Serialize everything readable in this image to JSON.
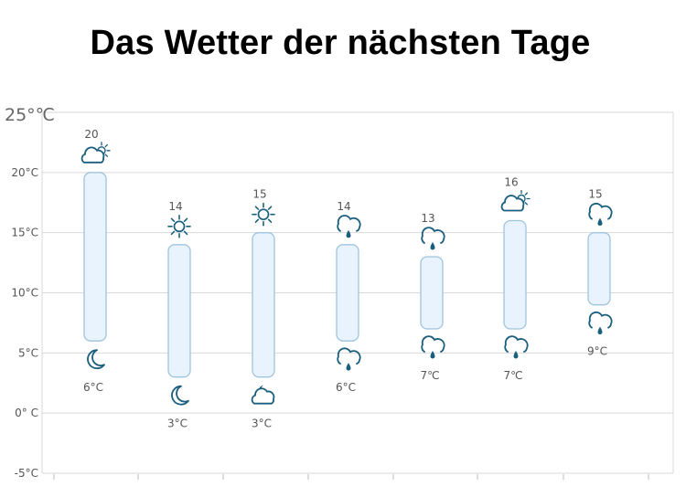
{
  "title": "Das Wetter der nächsten Tage",
  "chart_data": {
    "type": "bar",
    "subtype": "range-bar",
    "title": "Das Wetter der nächsten Tage",
    "ylim": [
      -5,
      25
    ],
    "y_ticks": [
      {
        "value": -5,
        "label": "-5°C"
      },
      {
        "value": 0,
        "label": "0° C"
      },
      {
        "value": 5,
        "label": "5°C"
      },
      {
        "value": 10,
        "label": "10°C"
      },
      {
        "value": 15,
        "label": "15°C"
      },
      {
        "value": 20,
        "label": "20°C"
      },
      {
        "value": 25,
        "label": "25°℃"
      }
    ],
    "grid": true,
    "days": [
      {
        "high": 20,
        "low": 6,
        "high_label": "20",
        "low_label": "6°C",
        "day_icon": "sun-cloud-icon",
        "night_icon": "moon-icon"
      },
      {
        "high": 14,
        "low": 3,
        "high_label": "14",
        "low_label": "3°C",
        "day_icon": "sun-icon",
        "night_icon": "moon-icon"
      },
      {
        "high": 15,
        "low": 3,
        "high_label": "15",
        "low_label": "3°C",
        "day_icon": "sun-icon",
        "night_icon": "moon-cloud-icon"
      },
      {
        "high": 14,
        "low": 6,
        "high_label": "14",
        "low_label": "6°C",
        "day_icon": "rain-icon",
        "night_icon": "rain-icon"
      },
      {
        "high": 13,
        "low": 7,
        "high_label": "13",
        "low_label": "7℃",
        "day_icon": "rain-icon",
        "night_icon": "rain-icon"
      },
      {
        "high": 16,
        "low": 7,
        "high_label": "16",
        "low_label": "7℃",
        "day_icon": "sun-cloud-icon",
        "night_icon": "rain-icon"
      },
      {
        "high": 15,
        "low": 9,
        "high_label": "15",
        "low_label": "9°C",
        "day_icon": "rain-icon",
        "night_icon": "rain-icon"
      }
    ],
    "colors": {
      "bar_fill": "#e9f3fd",
      "bar_stroke": "#9fc5de",
      "icon": "#1b5f7e",
      "grid": "#d9d9d9"
    }
  }
}
